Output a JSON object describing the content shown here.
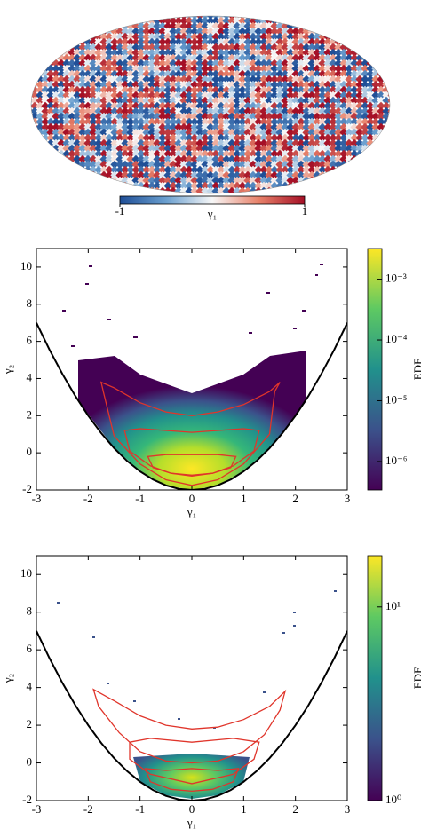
{
  "chart_data": [
    {
      "type": "map",
      "colormap": [
        "#1f4e96",
        "#6a9fcf",
        "#f7f7f7",
        "#e8826a",
        "#a50f26"
      ],
      "colorbar": {
        "lim": [
          -1,
          1
        ],
        "ticks": [
          -1,
          1
        ],
        "label": "γ₁"
      }
    },
    {
      "type": "hist2d",
      "xlabel": "γ₁",
      "ylabel": "γ₂",
      "xlim": [
        -3,
        3
      ],
      "xticks": [
        -3,
        -2,
        -1,
        0,
        1,
        2,
        3
      ],
      "ylim": [
        -2,
        11
      ],
      "yticks": [
        -2,
        0,
        2,
        4,
        6,
        8,
        10
      ],
      "boundary_color": "#000000",
      "boundary": {
        "x": [
          -3,
          -2.75,
          -2.5,
          -2.25,
          -2,
          -1.75,
          -1.5,
          -1.25,
          -1,
          -0.75,
          -0.5,
          -0.25,
          0,
          0.25,
          0.5,
          0.75,
          1,
          1.25,
          1.5,
          1.75,
          2,
          2.25,
          2.5,
          2.75,
          3
        ],
        "y": [
          7,
          5.5625,
          4.25,
          3.0625,
          2,
          1.0625,
          0.25,
          -0.4375,
          -1,
          -1.4375,
          -1.75,
          -1.9375,
          -2,
          -1.9375,
          -1.75,
          -1.4375,
          -1,
          -0.4375,
          0.25,
          1.0625,
          2,
          3.0625,
          4.25,
          5.5625,
          7
        ]
      },
      "contour_color": "#e0352b",
      "contours": [
        {
          "x": [
            -1.75,
            -1.5,
            -1,
            -0.5,
            0,
            0.5,
            1,
            1.5,
            1.7,
            1.6,
            1.5,
            1,
            0.5,
            0,
            -0.5,
            -1,
            -1.5,
            -1.7
          ],
          "y": [
            3.8,
            3.5,
            2.7,
            2.2,
            2.0,
            2.2,
            2.6,
            3.3,
            3.8,
            3.3,
            1.0,
            -0.6,
            -1.45,
            -1.75,
            -1.45,
            -0.6,
            0.9,
            3.2
          ]
        },
        {
          "x": [
            -1.3,
            -1,
            -0.5,
            0,
            0.5,
            1,
            1.3,
            1.2,
            0.8,
            0.4,
            0,
            -0.4,
            -0.8,
            -1.2
          ],
          "y": [
            1.2,
            1.3,
            1.2,
            1.1,
            1.2,
            1.3,
            1.2,
            0.1,
            -0.7,
            -1.1,
            -1.25,
            -1.1,
            -0.7,
            0.1
          ]
        },
        {
          "x": [
            -0.85,
            -0.5,
            0,
            0.5,
            0.85,
            0.75,
            0.4,
            0,
            -0.4,
            -0.75
          ],
          "y": [
            -0.2,
            -0.1,
            -0.1,
            -0.1,
            -0.2,
            -0.8,
            -1.1,
            -1.2,
            -1.1,
            -0.8
          ]
        }
      ],
      "colorbar": {
        "log": true,
        "lim": [
          3.4e-07,
          0.0032
        ],
        "ticks": [
          {
            "value": 1e-06,
            "label": "10⁻⁶"
          },
          {
            "value": 1e-05,
            "label": "10⁻⁵"
          },
          {
            "value": 0.0001,
            "label": "10⁻⁴"
          },
          {
            "value": 0.001,
            "label": "10⁻³"
          }
        ],
        "label": "EDF",
        "colormap": [
          "#440154",
          "#3b528b",
          "#21918c",
          "#5ec962",
          "#fde725"
        ]
      }
    },
    {
      "type": "hist2d",
      "xlabel": "γ₁",
      "ylabel": "γ₂",
      "xlim": [
        -3,
        3
      ],
      "xticks": [
        -3,
        -2,
        -1,
        0,
        1,
        2,
        3
      ],
      "ylim": [
        -2,
        11
      ],
      "yticks": [
        -2,
        0,
        2,
        4,
        6,
        8,
        10
      ],
      "boundary_color": "#000000",
      "boundary": {
        "x": [
          -3,
          -2.75,
          -2.5,
          -2.25,
          -2,
          -1.75,
          -1.5,
          -1.25,
          -1,
          -0.75,
          -0.5,
          -0.25,
          0,
          0.25,
          0.5,
          0.75,
          1,
          1.25,
          1.5,
          1.75,
          2,
          2.25,
          2.5,
          2.75,
          3
        ],
        "y": [
          7,
          5.5625,
          4.25,
          3.0625,
          2,
          1.0625,
          0.25,
          -0.4375,
          -1,
          -1.4375,
          -1.75,
          -1.9375,
          -2,
          -1.9375,
          -1.75,
          -1.4375,
          -1,
          -0.4375,
          0.25,
          1.0625,
          2,
          3.0625,
          4.25,
          5.5625,
          7
        ]
      },
      "contour_color": "#e0352b",
      "contours": [
        {
          "x": [
            -1.9,
            -1.5,
            -1,
            -0.5,
            0,
            0.5,
            1,
            1.5,
            1.8,
            1.7,
            1.4,
            1.0,
            0.5,
            0,
            -0.5,
            -1.0,
            -1.4,
            -1.8
          ],
          "y": [
            3.9,
            3.3,
            2.5,
            2.0,
            1.8,
            1.9,
            2.3,
            3.0,
            3.8,
            2.8,
            1.5,
            0.6,
            0.1,
            0.0,
            0.1,
            0.6,
            1.6,
            3.0
          ]
        },
        {
          "x": [
            -1.2,
            -0.8,
            0,
            0.8,
            1.3,
            1.2,
            0.8,
            0,
            -0.8,
            -1.2
          ],
          "y": [
            1.1,
            1.3,
            1.1,
            1.3,
            1.1,
            0.2,
            -0.6,
            -1.1,
            -0.6,
            0.2
          ]
        },
        {
          "x": [
            -0.9,
            -0.5,
            0,
            0.5,
            0.9,
            0.8,
            0.4,
            0,
            -0.4,
            -0.8
          ],
          "y": [
            -0.3,
            -0.4,
            -0.3,
            -0.4,
            -0.3,
            -1.0,
            -1.4,
            -1.5,
            -1.4,
            -1.0
          ]
        }
      ],
      "colorbar": {
        "log": true,
        "lim": [
          1,
          18.4
        ],
        "ticks": [
          {
            "value": 1,
            "label": "10⁰"
          },
          {
            "value": 10,
            "label": "10¹"
          }
        ],
        "label": "EDF",
        "colormap": [
          "#440154",
          "#3b528b",
          "#21918c",
          "#5ec962",
          "#fde725"
        ]
      }
    }
  ]
}
